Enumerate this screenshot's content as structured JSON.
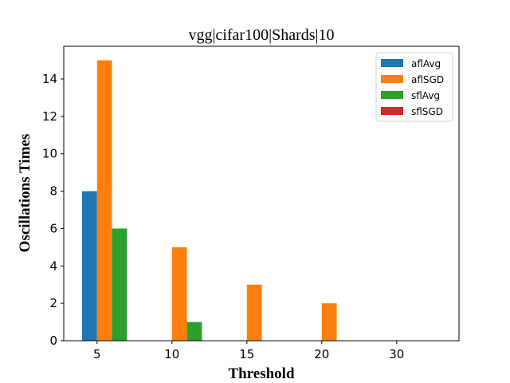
{
  "chart_data": {
    "type": "bar",
    "title": "vgg|cifar100|Shards|10",
    "xlabel": "Threshold",
    "ylabel": "Oscillations Times",
    "categories": [
      "5",
      "10",
      "15",
      "20",
      "30"
    ],
    "series": [
      {
        "name": "aflAvg",
        "color": "#1f77b4",
        "values": [
          8,
          0,
          0,
          0,
          0
        ]
      },
      {
        "name": "aflSGD",
        "color": "#ff7f0e",
        "values": [
          15,
          5,
          3,
          2,
          0
        ]
      },
      {
        "name": "sflAvg",
        "color": "#2ca02c",
        "values": [
          6,
          1,
          0,
          0,
          0
        ]
      },
      {
        "name": "sflSGD",
        "color": "#d62728",
        "values": [
          0,
          0,
          0,
          0,
          0
        ]
      }
    ],
    "yticks": [
      "0",
      "2",
      "4",
      "6",
      "8",
      "10",
      "12",
      "14"
    ],
    "ylim": [
      0,
      15.75
    ],
    "grid": false,
    "legend": "top-right"
  }
}
